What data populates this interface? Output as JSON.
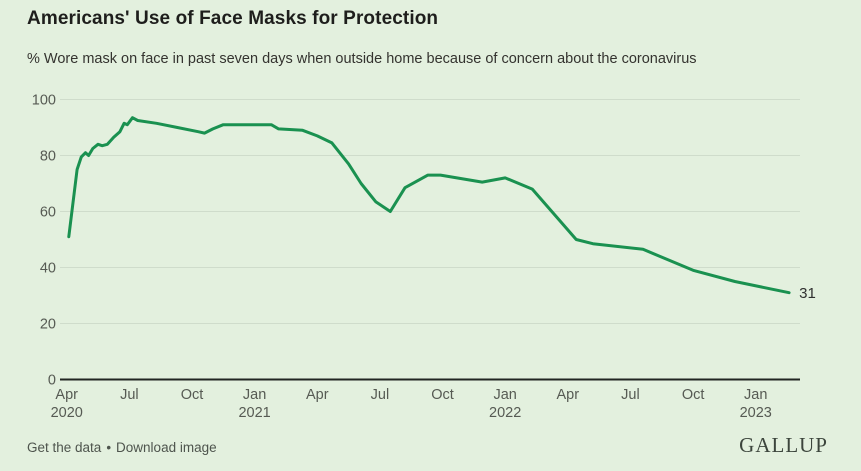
{
  "header": {
    "title": "Americans' Use of Face Masks for Protection",
    "subtitle": "% Wore mask on face in past seven days when outside home because of concern about the coronavirus"
  },
  "chart_data": {
    "type": "line",
    "title": "Americans' Use of Face Masks for Protection",
    "xlabel": "",
    "ylabel": "",
    "ylim": [
      0,
      100
    ],
    "grid": true,
    "legend_position": "none",
    "x_encoding": "months since April 2020",
    "y_ticks": [
      0,
      20,
      40,
      60,
      80,
      100
    ],
    "x_ticks": [
      {
        "m": 0,
        "label": "Apr",
        "year": "2020"
      },
      {
        "m": 3,
        "label": "Jul"
      },
      {
        "m": 6,
        "label": "Oct"
      },
      {
        "m": 9,
        "label": "Jan",
        "year": "2021"
      },
      {
        "m": 12,
        "label": "Apr"
      },
      {
        "m": 15,
        "label": "Jul"
      },
      {
        "m": 18,
        "label": "Oct"
      },
      {
        "m": 21,
        "label": "Jan",
        "year": "2022"
      },
      {
        "m": 24,
        "label": "Apr"
      },
      {
        "m": 27,
        "label": "Jul"
      },
      {
        "m": 30,
        "label": "Oct"
      },
      {
        "m": 33,
        "label": "Jan",
        "year": "2023"
      }
    ],
    "series": [
      {
        "name": "% Wore mask on face in past seven days",
        "color": "#1a9150",
        "points": [
          [
            0.1,
            51
          ],
          [
            0.5,
            75
          ],
          [
            0.7,
            79.5
          ],
          [
            0.9,
            81
          ],
          [
            1.05,
            80
          ],
          [
            1.25,
            82.5
          ],
          [
            1.5,
            84
          ],
          [
            1.7,
            83.5
          ],
          [
            1.95,
            84
          ],
          [
            2.25,
            86.5
          ],
          [
            2.55,
            88.5
          ],
          [
            2.75,
            91.5
          ],
          [
            2.9,
            91
          ],
          [
            3.15,
            93.5
          ],
          [
            3.4,
            92.5
          ],
          [
            4.3,
            91.5
          ],
          [
            5.3,
            90
          ],
          [
            6.3,
            88.5
          ],
          [
            6.6,
            88
          ],
          [
            7.0,
            89.5
          ],
          [
            7.5,
            91
          ],
          [
            9.8,
            91
          ],
          [
            10.15,
            89.5
          ],
          [
            11.3,
            89
          ],
          [
            12.0,
            87
          ],
          [
            12.7,
            84.5
          ],
          [
            13.5,
            77
          ],
          [
            14.1,
            70
          ],
          [
            14.8,
            63.5
          ],
          [
            15.5,
            60
          ],
          [
            16.2,
            68.5
          ],
          [
            17.3,
            73
          ],
          [
            17.9,
            73
          ],
          [
            19.9,
            70.5
          ],
          [
            21.0,
            72
          ],
          [
            22.3,
            68
          ],
          [
            24.4,
            50
          ],
          [
            25.2,
            48.5
          ],
          [
            27.6,
            46.5
          ],
          [
            30.0,
            39
          ],
          [
            32.0,
            35
          ],
          [
            34.6,
            31
          ]
        ]
      }
    ],
    "end_label": "31"
  },
  "footer": {
    "get_data": "Get the data",
    "separator": "•",
    "download_image": "Download image",
    "brand": "GALLUP"
  },
  "colors": {
    "background": "#e3f0de",
    "line": "#1a9150",
    "grid": "#cfdccb",
    "axis_line": "#222522",
    "tick_text": "#565a53",
    "title_text": "#1e1e1c",
    "subtitle_text": "#34332f",
    "end_label_text": "#303030",
    "footer_link": "#4e544d",
    "brand_text": "#3c453c"
  }
}
